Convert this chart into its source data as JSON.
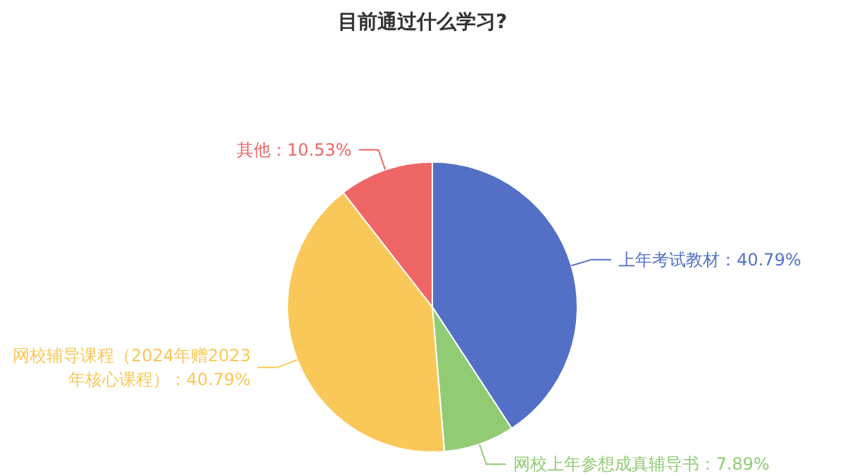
{
  "chart_data": {
    "type": "pie",
    "title": "目前通过什么学习?",
    "categories": [
      "上年考试教材",
      "网校上年参想成真辅导书",
      "网校辅导课程（2024年赠2023年核心课程）",
      "其他"
    ],
    "values": [
      40.79,
      7.89,
      40.79,
      10.53
    ],
    "value_labels": [
      "：40.79%",
      "：7.89%",
      "：40.79%",
      "：10.53%"
    ],
    "colors": [
      "#5470c6",
      "#91cc75",
      "#fac858",
      "#ee6666"
    ]
  }
}
